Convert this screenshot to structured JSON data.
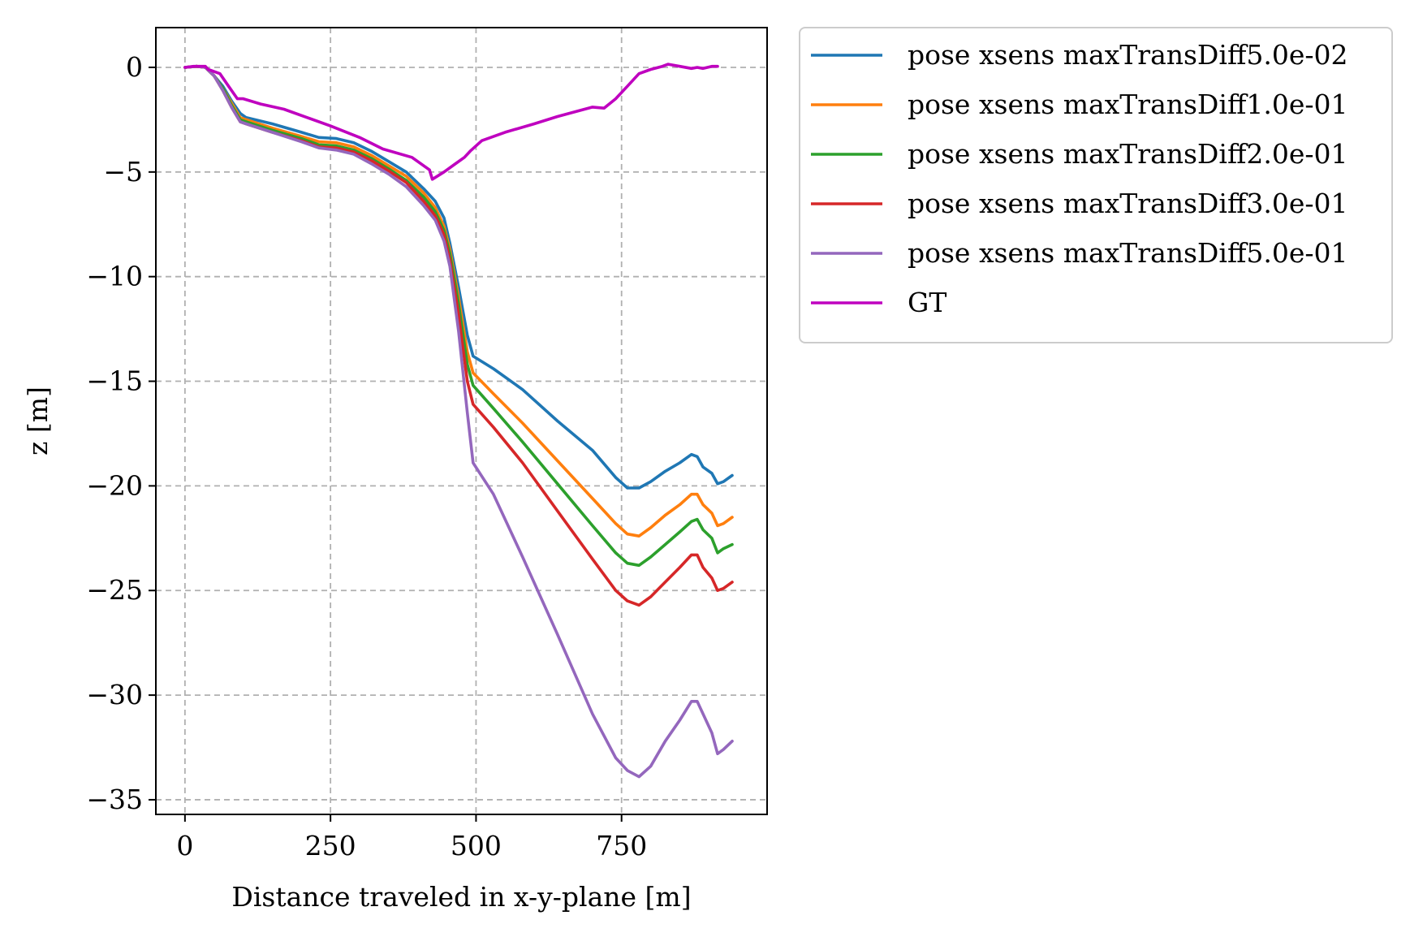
{
  "chart_data": {
    "type": "line",
    "title": "",
    "xlabel": "Distance traveled in x-y-plane [m]",
    "ylabel": "z [m]",
    "xlim": [
      -50,
      1000
    ],
    "ylim": [
      -35.7,
      1.9
    ],
    "xticks": [
      0,
      250,
      500,
      750
    ],
    "xtick_labels": [
      "0",
      "250",
      "500",
      "750"
    ],
    "yticks": [
      0,
      -5,
      -10,
      -15,
      -20,
      -25,
      -30,
      -35
    ],
    "ytick_labels": [
      "0",
      "−5",
      "−10",
      "−15",
      "−20",
      "−25",
      "−30",
      "−35"
    ],
    "grid": true,
    "legend_placement": "outside-upper-right",
    "series": [
      {
        "name": "pose xsens maxTransDiff5.0e-02",
        "color": "#1f77b4",
        "points": [
          [
            0,
            0
          ],
          [
            20,
            0.05
          ],
          [
            35,
            0
          ],
          [
            50,
            -0.4
          ],
          [
            65,
            -0.9
          ],
          [
            80,
            -1.6
          ],
          [
            95,
            -2.2
          ],
          [
            105,
            -2.4
          ],
          [
            150,
            -2.7
          ],
          [
            200,
            -3.1
          ],
          [
            230,
            -3.35
          ],
          [
            260,
            -3.4
          ],
          [
            290,
            -3.6
          ],
          [
            320,
            -4.0
          ],
          [
            350,
            -4.5
          ],
          [
            380,
            -5.0
          ],
          [
            410,
            -5.8
          ],
          [
            430,
            -6.4
          ],
          [
            445,
            -7.2
          ],
          [
            455,
            -8.4
          ],
          [
            470,
            -10.5
          ],
          [
            485,
            -12.8
          ],
          [
            495,
            -13.8
          ],
          [
            530,
            -14.4
          ],
          [
            580,
            -15.4
          ],
          [
            640,
            -16.9
          ],
          [
            700,
            -18.3
          ],
          [
            740,
            -19.6
          ],
          [
            760,
            -20.1
          ],
          [
            780,
            -20.1
          ],
          [
            800,
            -19.8
          ],
          [
            825,
            -19.3
          ],
          [
            850,
            -18.9
          ],
          [
            870,
            -18.5
          ],
          [
            880,
            -18.6
          ],
          [
            890,
            -19.1
          ],
          [
            905,
            -19.4
          ],
          [
            915,
            -19.9
          ],
          [
            925,
            -19.8
          ],
          [
            940,
            -19.5
          ]
        ]
      },
      {
        "name": "pose xsens maxTransDiff1.0e-01",
        "color": "#ff7f0e",
        "points": [
          [
            0,
            0
          ],
          [
            20,
            0.05
          ],
          [
            35,
            0
          ],
          [
            50,
            -0.4
          ],
          [
            65,
            -1.0
          ],
          [
            80,
            -1.7
          ],
          [
            95,
            -2.4
          ],
          [
            105,
            -2.5
          ],
          [
            150,
            -2.9
          ],
          [
            200,
            -3.3
          ],
          [
            230,
            -3.55
          ],
          [
            260,
            -3.6
          ],
          [
            290,
            -3.8
          ],
          [
            320,
            -4.2
          ],
          [
            350,
            -4.7
          ],
          [
            380,
            -5.2
          ],
          [
            410,
            -6.0
          ],
          [
            430,
            -6.7
          ],
          [
            445,
            -7.6
          ],
          [
            455,
            -8.7
          ],
          [
            470,
            -11.0
          ],
          [
            485,
            -13.6
          ],
          [
            495,
            -14.6
          ],
          [
            530,
            -15.6
          ],
          [
            580,
            -17.0
          ],
          [
            640,
            -18.8
          ],
          [
            700,
            -20.6
          ],
          [
            740,
            -21.8
          ],
          [
            760,
            -22.3
          ],
          [
            780,
            -22.4
          ],
          [
            800,
            -22.0
          ],
          [
            825,
            -21.4
          ],
          [
            850,
            -20.9
          ],
          [
            870,
            -20.4
          ],
          [
            880,
            -20.4
          ],
          [
            890,
            -20.9
          ],
          [
            905,
            -21.3
          ],
          [
            915,
            -21.9
          ],
          [
            925,
            -21.8
          ],
          [
            940,
            -21.5
          ]
        ]
      },
      {
        "name": "pose xsens maxTransDiff2.0e-01",
        "color": "#2ca02c",
        "points": [
          [
            0,
            0
          ],
          [
            20,
            0.05
          ],
          [
            35,
            0
          ],
          [
            50,
            -0.4
          ],
          [
            65,
            -1.0
          ],
          [
            80,
            -1.8
          ],
          [
            95,
            -2.5
          ],
          [
            105,
            -2.6
          ],
          [
            150,
            -3.0
          ],
          [
            200,
            -3.4
          ],
          [
            230,
            -3.7
          ],
          [
            260,
            -3.75
          ],
          [
            290,
            -3.95
          ],
          [
            320,
            -4.35
          ],
          [
            350,
            -4.85
          ],
          [
            380,
            -5.4
          ],
          [
            410,
            -6.2
          ],
          [
            430,
            -6.9
          ],
          [
            445,
            -7.8
          ],
          [
            455,
            -8.9
          ],
          [
            470,
            -11.3
          ],
          [
            485,
            -14.2
          ],
          [
            495,
            -15.2
          ],
          [
            530,
            -16.3
          ],
          [
            580,
            -17.9
          ],
          [
            640,
            -19.9
          ],
          [
            700,
            -21.9
          ],
          [
            740,
            -23.2
          ],
          [
            760,
            -23.7
          ],
          [
            780,
            -23.8
          ],
          [
            800,
            -23.4
          ],
          [
            825,
            -22.8
          ],
          [
            850,
            -22.2
          ],
          [
            870,
            -21.7
          ],
          [
            880,
            -21.6
          ],
          [
            890,
            -22.1
          ],
          [
            905,
            -22.5
          ],
          [
            915,
            -23.2
          ],
          [
            925,
            -23.0
          ],
          [
            940,
            -22.8
          ]
        ]
      },
      {
        "name": "pose xsens maxTransDiff3.0e-01",
        "color": "#d62728",
        "points": [
          [
            0,
            0
          ],
          [
            20,
            0.05
          ],
          [
            35,
            0
          ],
          [
            50,
            -0.4
          ],
          [
            65,
            -1.1
          ],
          [
            80,
            -1.9
          ],
          [
            95,
            -2.6
          ],
          [
            105,
            -2.7
          ],
          [
            150,
            -3.1
          ],
          [
            200,
            -3.5
          ],
          [
            230,
            -3.8
          ],
          [
            260,
            -3.85
          ],
          [
            290,
            -4.05
          ],
          [
            320,
            -4.45
          ],
          [
            350,
            -4.95
          ],
          [
            380,
            -5.5
          ],
          [
            410,
            -6.4
          ],
          [
            430,
            -7.1
          ],
          [
            445,
            -8.0
          ],
          [
            455,
            -9.2
          ],
          [
            470,
            -11.8
          ],
          [
            485,
            -15.0
          ],
          [
            495,
            -16.1
          ],
          [
            530,
            -17.2
          ],
          [
            580,
            -18.9
          ],
          [
            640,
            -21.2
          ],
          [
            700,
            -23.5
          ],
          [
            740,
            -25.0
          ],
          [
            760,
            -25.5
          ],
          [
            780,
            -25.7
          ],
          [
            800,
            -25.3
          ],
          [
            825,
            -24.6
          ],
          [
            850,
            -23.9
          ],
          [
            870,
            -23.3
          ],
          [
            880,
            -23.3
          ],
          [
            890,
            -23.9
          ],
          [
            905,
            -24.4
          ],
          [
            915,
            -25.0
          ],
          [
            925,
            -24.9
          ],
          [
            940,
            -24.6
          ]
        ]
      },
      {
        "name": "pose xsens maxTransDiff5.0e-01",
        "color": "#9467bd",
        "points": [
          [
            0,
            0
          ],
          [
            20,
            0.05
          ],
          [
            35,
            0
          ],
          [
            50,
            -0.4
          ],
          [
            65,
            -1.1
          ],
          [
            80,
            -1.9
          ],
          [
            95,
            -2.6
          ],
          [
            105,
            -2.7
          ],
          [
            150,
            -3.1
          ],
          [
            200,
            -3.55
          ],
          [
            230,
            -3.85
          ],
          [
            260,
            -3.95
          ],
          [
            290,
            -4.15
          ],
          [
            320,
            -4.6
          ],
          [
            350,
            -5.1
          ],
          [
            380,
            -5.7
          ],
          [
            410,
            -6.6
          ],
          [
            430,
            -7.3
          ],
          [
            445,
            -8.3
          ],
          [
            455,
            -9.5
          ],
          [
            470,
            -12.6
          ],
          [
            485,
            -16.5
          ],
          [
            495,
            -18.9
          ],
          [
            530,
            -20.4
          ],
          [
            580,
            -23.4
          ],
          [
            640,
            -27.1
          ],
          [
            700,
            -30.9
          ],
          [
            740,
            -33.0
          ],
          [
            760,
            -33.6
          ],
          [
            780,
            -33.9
          ],
          [
            800,
            -33.4
          ],
          [
            825,
            -32.2
          ],
          [
            850,
            -31.2
          ],
          [
            870,
            -30.3
          ],
          [
            880,
            -30.3
          ],
          [
            890,
            -30.9
          ],
          [
            905,
            -31.8
          ],
          [
            915,
            -32.8
          ],
          [
            925,
            -32.6
          ],
          [
            940,
            -32.2
          ]
        ]
      },
      {
        "name": "GT",
        "color": "#bf00bf",
        "points": [
          [
            0,
            0
          ],
          [
            15,
            0.05
          ],
          [
            35,
            0.05
          ],
          [
            40,
            -0.1
          ],
          [
            60,
            -0.3
          ],
          [
            75,
            -0.9
          ],
          [
            90,
            -1.5
          ],
          [
            100,
            -1.5
          ],
          [
            130,
            -1.75
          ],
          [
            170,
            -2.0
          ],
          [
            210,
            -2.4
          ],
          [
            250,
            -2.8
          ],
          [
            300,
            -3.35
          ],
          [
            340,
            -3.9
          ],
          [
            390,
            -4.3
          ],
          [
            420,
            -4.9
          ],
          [
            425,
            -5.35
          ],
          [
            445,
            -5.0
          ],
          [
            465,
            -4.6
          ],
          [
            480,
            -4.3
          ],
          [
            490,
            -4.0
          ],
          [
            510,
            -3.5
          ],
          [
            550,
            -3.1
          ],
          [
            600,
            -2.7
          ],
          [
            640,
            -2.35
          ],
          [
            680,
            -2.05
          ],
          [
            700,
            -1.9
          ],
          [
            720,
            -1.95
          ],
          [
            740,
            -1.5
          ],
          [
            760,
            -0.9
          ],
          [
            780,
            -0.3
          ],
          [
            800,
            -0.1
          ],
          [
            820,
            0.05
          ],
          [
            830,
            0.15
          ],
          [
            850,
            0.05
          ],
          [
            870,
            -0.05
          ],
          [
            880,
            0.0
          ],
          [
            890,
            -0.05
          ],
          [
            905,
            0.05
          ],
          [
            915,
            0.05
          ]
        ]
      }
    ]
  }
}
